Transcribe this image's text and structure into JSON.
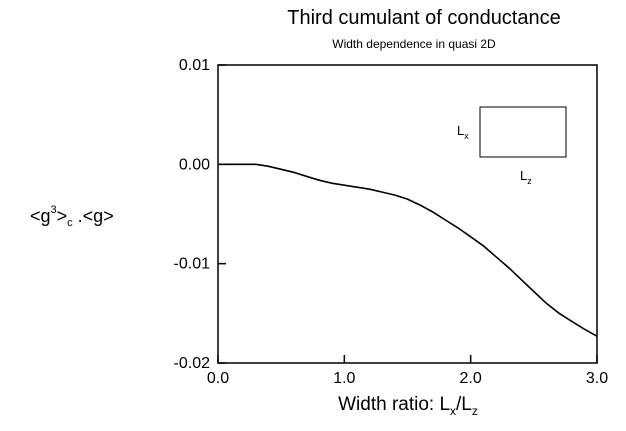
{
  "chart_data": {
    "type": "line",
    "title": "Third cumulant of conductance",
    "subtitle": "Width dependence in quasi 2D",
    "xlabel_main": "Width ratio: L",
    "xlabel_sub1": "x",
    "xlabel_sep": "/L",
    "xlabel_sub2": "z",
    "ylabel": {
      "p1": "<g",
      "sup": "3",
      "p2": ">",
      "sub": "c",
      "p3": " .<g>"
    },
    "xlim": [
      0.0,
      3.0
    ],
    "ylim": [
      -0.02,
      0.01
    ],
    "x_ticks": [
      {
        "value": 0.0,
        "label": "0.0"
      },
      {
        "value": 1.0,
        "label": "1.0"
      },
      {
        "value": 2.0,
        "label": "2.0"
      },
      {
        "value": 3.0,
        "label": "3.0"
      }
    ],
    "y_ticks": [
      {
        "value": 0.01,
        "label": "0.01"
      },
      {
        "value": 0.0,
        "label": "0.00"
      },
      {
        "value": -0.01,
        "label": "-0.01"
      },
      {
        "value": -0.02,
        "label": "-0.02"
      }
    ],
    "series": [
      {
        "color": "#000000",
        "points": [
          [
            0.0,
            0.0
          ],
          [
            0.1,
            0.0
          ],
          [
            0.2,
            0.0
          ],
          [
            0.3,
            -0.0
          ],
          [
            0.4,
            -0.0002
          ],
          [
            0.5,
            -0.0005
          ],
          [
            0.6,
            -0.0008
          ],
          [
            0.7,
            -0.0012
          ],
          [
            0.8,
            -0.0016
          ],
          [
            0.9,
            -0.0019
          ],
          [
            1.0,
            -0.0021
          ],
          [
            1.1,
            -0.0023
          ],
          [
            1.2,
            -0.0025
          ],
          [
            1.3,
            -0.0028
          ],
          [
            1.4,
            -0.0031
          ],
          [
            1.5,
            -0.0035
          ],
          [
            1.6,
            -0.0041
          ],
          [
            1.7,
            -0.0048
          ],
          [
            1.8,
            -0.0056
          ],
          [
            1.9,
            -0.0064
          ],
          [
            2.0,
            -0.0073
          ],
          [
            2.1,
            -0.0082
          ],
          [
            2.2,
            -0.0093
          ],
          [
            2.3,
            -0.0104
          ],
          [
            2.4,
            -0.0116
          ],
          [
            2.5,
            -0.0128
          ],
          [
            2.6,
            -0.014
          ],
          [
            2.7,
            -0.015
          ],
          [
            2.8,
            -0.0158
          ],
          [
            2.9,
            -0.0166
          ],
          [
            3.0,
            -0.0173
          ]
        ]
      }
    ],
    "inset": {
      "label_left": "L",
      "label_left_sub": "x",
      "label_bottom": "L",
      "label_bottom_sub": "z"
    }
  }
}
